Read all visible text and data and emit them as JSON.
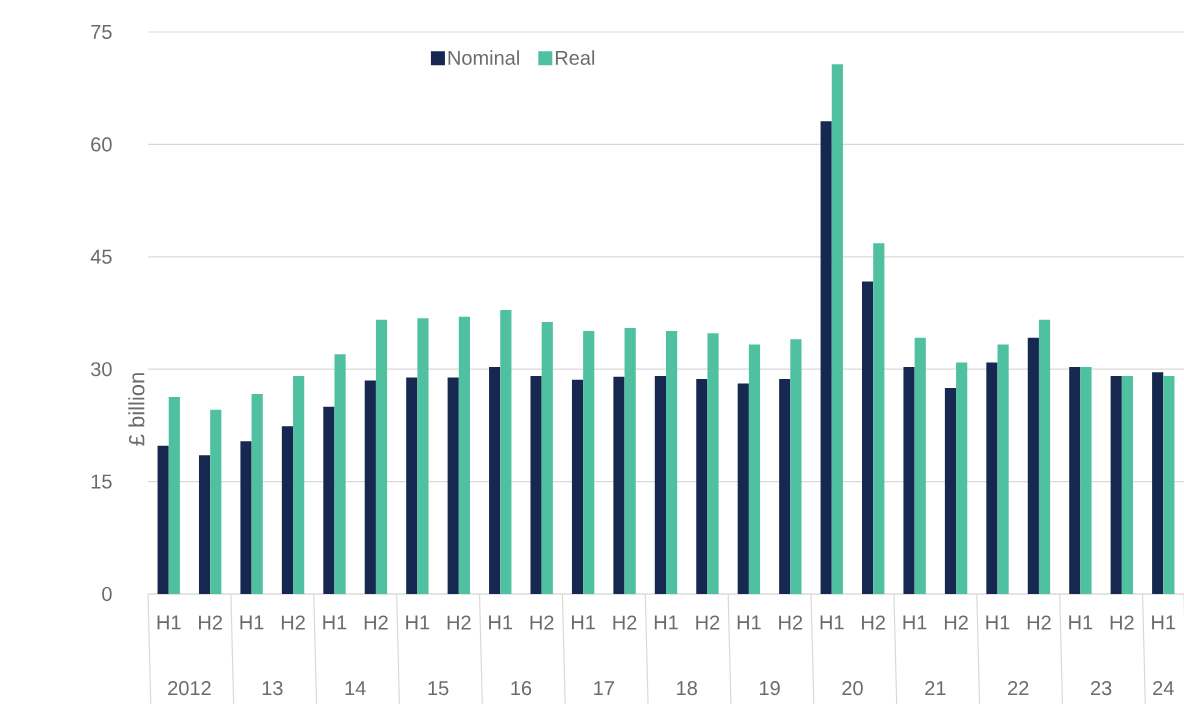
{
  "chart_data": {
    "type": "bar",
    "ylabel": "£ billion",
    "categories": [
      "H1",
      "H2",
      "H1",
      "H2",
      "H1",
      "H2",
      "H1",
      "H2",
      "H1",
      "H2",
      "H1",
      "H2",
      "H1",
      "H2",
      "H1",
      "H2",
      "H1",
      "H2",
      "H1",
      "H2",
      "H1",
      "H2",
      "H1",
      "H2",
      "H1"
    ],
    "series": [
      {
        "name": "Nominal",
        "color": "#16284f",
        "values": [
          19.8,
          18.5,
          20.4,
          22.4,
          25.0,
          28.5,
          28.9,
          28.9,
          30.3,
          29.1,
          28.6,
          29.0,
          29.1,
          28.7,
          28.1,
          28.7,
          63.1,
          41.7,
          30.3,
          27.5,
          30.9,
          34.2,
          30.3,
          29.1,
          29.6
        ]
      },
      {
        "name": "Real",
        "color": "#4fc1a1",
        "values": [
          26.3,
          24.6,
          26.7,
          29.1,
          32.0,
          36.6,
          36.8,
          37.0,
          37.9,
          36.3,
          35.1,
          35.5,
          35.1,
          34.8,
          33.3,
          34.0,
          70.7,
          46.8,
          34.2,
          30.9,
          33.3,
          36.6,
          30.3,
          29.1,
          29.1
        ]
      }
    ],
    "ylim": [
      0,
      75
    ],
    "yticks": [
      0,
      15,
      30,
      45,
      60,
      75
    ],
    "grid": "y",
    "legend": "top left",
    "annotations": [
      "2012",
      "13",
      "14",
      "15",
      "16",
      "17",
      "18",
      "19",
      "20",
      "21",
      "22",
      "23",
      "24"
    ]
  }
}
